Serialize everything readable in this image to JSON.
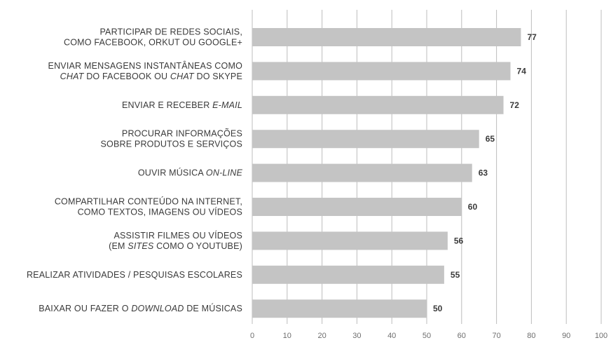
{
  "chart_data": {
    "type": "bar",
    "orientation": "horizontal",
    "title": "",
    "xlabel": "",
    "ylabel": "",
    "xlim": [
      0,
      100
    ],
    "xticks": [
      "0",
      "10",
      "20",
      "30",
      "40",
      "50",
      "60",
      "70",
      "80",
      "90",
      "100"
    ],
    "grid": true,
    "bar_color": "#c4c4c4",
    "grid_color": "#bdbdbd",
    "categories": [
      {
        "lines": [
          [
            {
              "t": "PARTICIPAR DE REDES SOCIAIS,"
            }
          ],
          [
            {
              "t": "COMO FACEBOOK, ORKUT OU GOOGLE+"
            }
          ]
        ]
      },
      {
        "lines": [
          [
            {
              "t": "ENVIAR MENSAGENS INSTANTÂNEAS COMO"
            }
          ],
          [
            {
              "t": "CHAT",
              "i": true
            },
            {
              "t": " DO FACEBOOK OU "
            },
            {
              "t": "CHAT",
              "i": true
            },
            {
              "t": " DO SKYPE"
            }
          ]
        ]
      },
      {
        "lines": [
          [
            {
              "t": "ENVIAR E RECEBER "
            },
            {
              "t": "E-MAIL",
              "i": true
            }
          ]
        ]
      },
      {
        "lines": [
          [
            {
              "t": "PROCURAR INFORMAÇÕES"
            }
          ],
          [
            {
              "t": "SOBRE PRODUTOS E SERVIÇOS"
            }
          ]
        ]
      },
      {
        "lines": [
          [
            {
              "t": "OUVIR MÚSICA "
            },
            {
              "t": "ON-LINE",
              "i": true
            }
          ]
        ]
      },
      {
        "lines": [
          [
            {
              "t": "COMPARTILHAR CONTEÚDO NA INTERNET,"
            }
          ],
          [
            {
              "t": "COMO TEXTOS, IMAGENS OU VÍDEOS"
            }
          ]
        ]
      },
      {
        "lines": [
          [
            {
              "t": "ASSISTIR FILMES OU VÍDEOS"
            }
          ],
          [
            {
              "t": "(EM "
            },
            {
              "t": "SITES",
              "i": true
            },
            {
              "t": " COMO O YOUTUBE)"
            }
          ]
        ]
      },
      {
        "lines": [
          [
            {
              "t": "REALIZAR ATIVIDADES / PESQUISAS ESCOLARES"
            }
          ]
        ]
      },
      {
        "lines": [
          [
            {
              "t": "BAIXAR OU FAZER O "
            },
            {
              "t": "DOWNLOAD",
              "i": true
            },
            {
              "t": " DE MÚSICAS"
            }
          ]
        ]
      }
    ],
    "values": [
      77,
      74,
      72,
      65,
      63,
      60,
      56,
      55,
      50
    ],
    "value_labels": [
      "77",
      "74",
      "72",
      "65",
      "63",
      "60",
      "56",
      "55",
      "50"
    ]
  }
}
